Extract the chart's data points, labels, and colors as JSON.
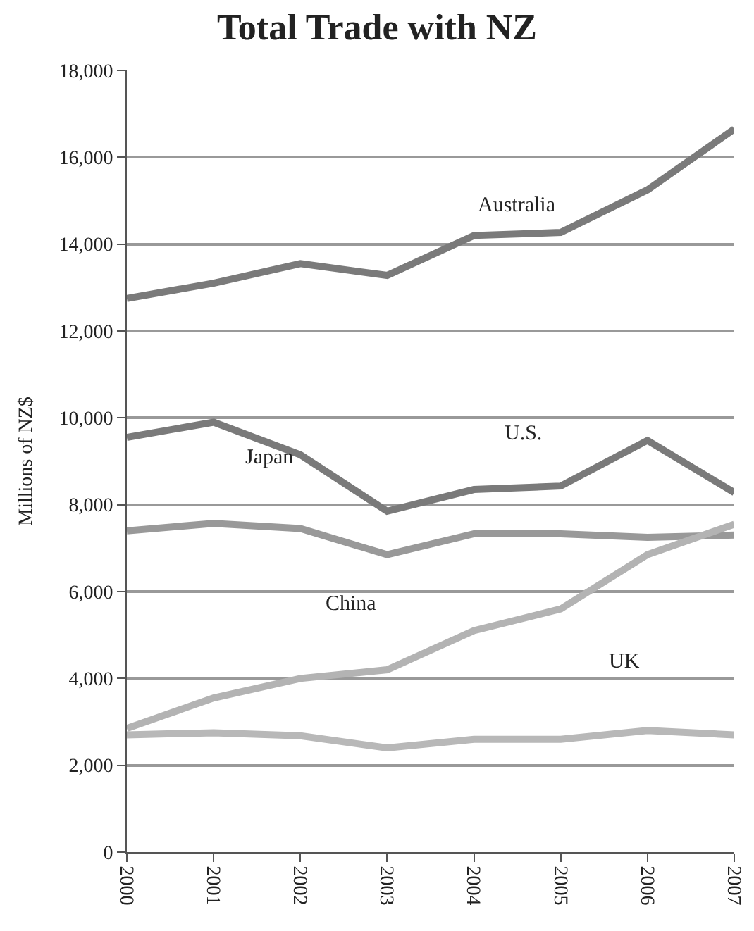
{
  "chart_data": {
    "type": "line",
    "title": "Total Trade with NZ",
    "ylabel": "Millions of NZ$",
    "x": [
      2000,
      2001,
      2002,
      2003,
      2004,
      2005,
      2006,
      2007
    ],
    "xlim": [
      2000,
      2007
    ],
    "xticks": [
      2000,
      2001,
      2002,
      2003,
      2004,
      2005,
      2006,
      2007
    ],
    "ylim": [
      0,
      18000
    ],
    "yticks": [
      {
        "value": 0,
        "label": "0"
      },
      {
        "value": 2000,
        "label": "2,000"
      },
      {
        "value": 4000,
        "label": "4,000"
      },
      {
        "value": 6000,
        "label": "6,000"
      },
      {
        "value": 8000,
        "label": "8,000"
      },
      {
        "value": 10000,
        "label": "10,000"
      },
      {
        "value": 12000,
        "label": "12,000"
      },
      {
        "value": 14000,
        "label": "14,000"
      },
      {
        "value": 16000,
        "label": "16,000"
      },
      {
        "value": 18000,
        "label": "18,000"
      }
    ],
    "grid": "y",
    "marker": "none",
    "line_style": "solid",
    "series": [
      {
        "color": "#7a7a7a",
        "values": [
          12750,
          13100,
          13550,
          13280,
          14200,
          14270,
          15250,
          16650
        ]
      },
      {
        "color": "#7a7a7a",
        "values": [
          9550,
          9900,
          9150,
          7850,
          8350,
          8430,
          9480,
          8280
        ]
      },
      {
        "color": "#999999",
        "values": [
          7400,
          7570,
          7450,
          6850,
          7330,
          7330,
          7250,
          7300
        ]
      },
      {
        "color": "#b3b3b3",
        "values": [
          2850,
          3550,
          4000,
          4200,
          5100,
          5600,
          6850,
          7550
        ]
      },
      {
        "color": "#b8b8b8",
        "values": [
          2700,
          2750,
          2680,
          2400,
          2600,
          2600,
          2800,
          2700
        ]
      }
    ],
    "annotations": [
      "Australia",
      "U.S.",
      "Japan",
      "China",
      "UK"
    ]
  }
}
